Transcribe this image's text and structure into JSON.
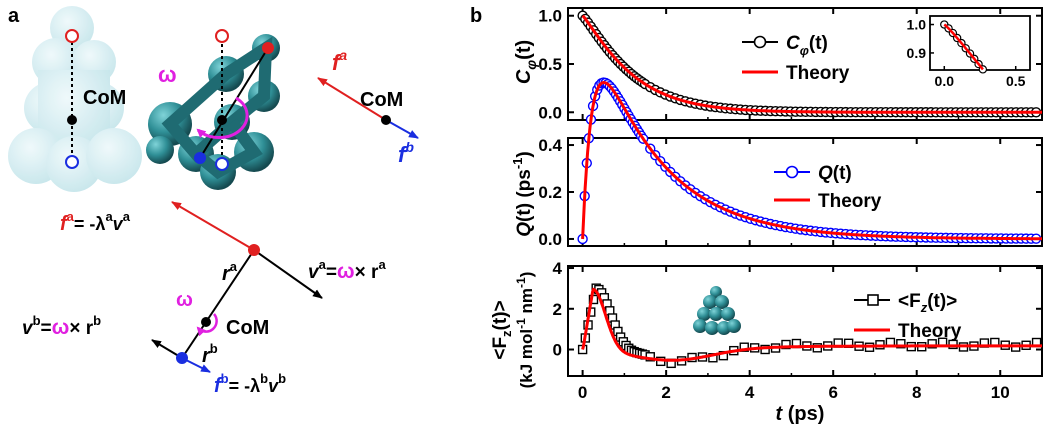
{
  "panel_a": {
    "label": "a",
    "com_left": "CoM",
    "com_right": "CoM",
    "com_bottom": "CoM",
    "omega": "ω",
    "f_a": "f",
    "f_a_sup": "a",
    "f_b": "f",
    "f_b_sup": "b",
    "eq_fa": {
      "f": "f",
      "sup": "a",
      "rest": "= -λ",
      "lam_sup": "a",
      "v": "v",
      "v_sup": "a"
    },
    "eq_fb": {
      "f": "f",
      "sup": "b",
      "rest": "= -λ",
      "lam_sup": "b",
      "v": "v",
      "v_sup": "b"
    },
    "eq_va": {
      "v": "v",
      "sup": "a",
      "eq": "=",
      "omega": "ω",
      "times": "× r",
      "r_sup": "a"
    },
    "eq_vb": {
      "v": "v",
      "sup": "b",
      "eq": "=",
      "omega": "ω",
      "times": "× r",
      "r_sup": "b"
    },
    "r_a": {
      "r": "r",
      "sup": "a"
    },
    "r_b": {
      "r": "r",
      "sup": "b"
    }
  },
  "panel_b": {
    "label": "b",
    "xlabel": {
      "t": "t",
      "unit": " (ps)"
    },
    "xticks": [
      "0",
      "2",
      "4",
      "6",
      "8",
      "10"
    ],
    "xlim": [
      -0.35,
      11
    ],
    "colors": {
      "data1": "#000000",
      "data2": "#0000ff",
      "data3": "#000000",
      "theory": "#ff0000"
    }
  },
  "chart_data": [
    {
      "type": "line",
      "ylabel": "Cφ(t)",
      "ylim": [
        -0.08,
        1.08
      ],
      "yticks": [
        "0.0",
        "0.5",
        "1.0"
      ],
      "ytick_values": [
        0.0,
        0.5,
        1.0
      ],
      "series": [
        {
          "name": "Cφ(t)",
          "marker": "circle",
          "values_fn": "exp",
          "tau": 1.25
        },
        {
          "name": "Theory",
          "marker": "none"
        }
      ],
      "legend": {
        "series1": "Cφ(t)",
        "series2": "Theory",
        "placement": "top-right"
      },
      "inset": {
        "xlim": [
          -0.1,
          0.6
        ],
        "ylim": [
          0.84,
          1.03
        ],
        "xticks": [
          "0.0",
          "0.5"
        ],
        "xtick_values": [
          0.0,
          0.5
        ],
        "yticks": [
          "0.9",
          "1.0"
        ],
        "ytick_values": [
          0.9,
          1.0
        ]
      }
    },
    {
      "type": "line",
      "ylabel": "Q(t) (ps-1)",
      "ylim": [
        -0.03,
        0.43
      ],
      "yticks": [
        "0.0",
        "0.2",
        "0.4"
      ],
      "ytick_values": [
        0.0,
        0.2,
        0.4
      ],
      "peak": {
        "x": 0.55,
        "y": 0.39
      },
      "series": [
        {
          "name": "Q(t)",
          "marker": "circle"
        },
        {
          "name": "Theory",
          "marker": "none"
        }
      ],
      "legend": {
        "series1": "Q(t)",
        "series2": "Theory",
        "placement": "top-right"
      }
    },
    {
      "type": "line",
      "ylabel": "<Fz(t)> (kJ mol-1 nm-1)",
      "ylim": [
        -1.3,
        4.1
      ],
      "yticks": [
        "0",
        "2",
        "4"
      ],
      "ytick_values": [
        0,
        2,
        4
      ],
      "peak": {
        "x": 0.25,
        "y": 3.05
      },
      "series": [
        {
          "name": "<Fz(t)>",
          "marker": "square"
        },
        {
          "name": "Theory",
          "marker": "none"
        }
      ],
      "legend": {
        "series1": "<Fz(t)>",
        "series2": "Theory",
        "placement": "top-right"
      }
    }
  ],
  "texts": {
    "c_label": "C",
    "c_sub": "φ",
    "c_paren": "(t)",
    "q_label": "Q",
    "q_paren": "(t)",
    "fz_open": "<F",
    "fz_sub": "z",
    "fz_close": "(t)>",
    "theory": "Theory",
    "q_unit": "(ps",
    "q_unit_sup": "-1",
    "q_unit_close": ")",
    "fz_unit1": "(kJ mol",
    "fz_unit_sup1": "-1",
    "fz_unit2": " nm",
    "fz_unit_sup2": "-1",
    "fz_unit3": ")"
  }
}
